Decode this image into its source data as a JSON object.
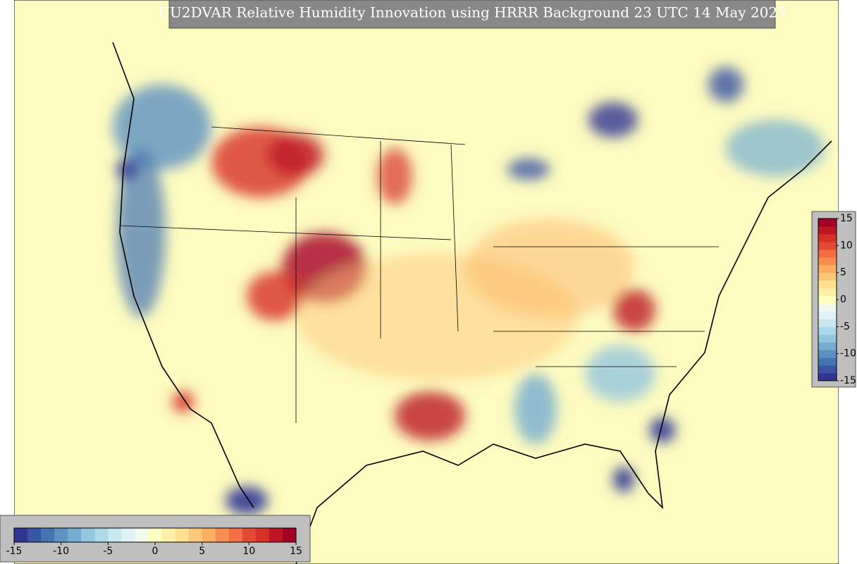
{
  "title": "UU2DVAR Relative Humidity Innovation using HRRR Background 23 UTC 14 May 2025",
  "colors": [
    "#313695",
    "#3a54a4",
    "#4574b3",
    "#5e91c2",
    "#74add1",
    "#95c6df",
    "#abd9e9",
    "#c9e7f1",
    "#e0f3f8",
    "#f1f9ed",
    "#ffffbf",
    "#fff0a8",
    "#fee090",
    "#fdc77a",
    "#fdae61",
    "#f88d52",
    "#f46d43",
    "#e34a33",
    "#d73027",
    "#bd1726",
    "#a50026"
  ],
  "colorbar_horizontal": {
    "lim": [
      -15,
      15
    ],
    "ticks": [
      -15,
      -10,
      -5,
      0,
      5,
      10,
      15
    ]
  },
  "colorbar_vertical": {
    "lim": [
      -15,
      15
    ],
    "ticks": [
      15,
      10,
      5,
      0,
      -5,
      -10,
      -15
    ]
  }
}
